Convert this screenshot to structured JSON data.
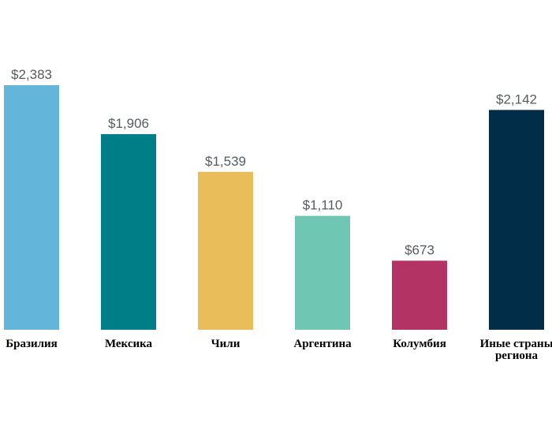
{
  "chart_data": {
    "type": "bar",
    "title": "",
    "xlabel": "",
    "ylabel": "",
    "categories": [
      "Бразилия",
      "Мексика",
      "Чили",
      "Аргентина",
      "Колумбия",
      "Иные страны региона"
    ],
    "category_lines": [
      [
        "Бразилия"
      ],
      [
        "Мексика"
      ],
      [
        "Чили"
      ],
      [
        "Аргентина"
      ],
      [
        "Колумбия"
      ],
      [
        "Иные страны",
        "региона"
      ]
    ],
    "values": [
      2383,
      1906,
      1539,
      1110,
      673,
      2142
    ],
    "value_labels": [
      "$2,383",
      "$1,906",
      "$1,539",
      "$1,110",
      "$673",
      "$2,142"
    ],
    "colors": [
      "#64b5da",
      "#007e87",
      "#e9be5a",
      "#6fc6b2",
      "#b33365",
      "#022d49"
    ],
    "ylim": [
      0,
      2383
    ],
    "grid": false,
    "legend": "none"
  }
}
